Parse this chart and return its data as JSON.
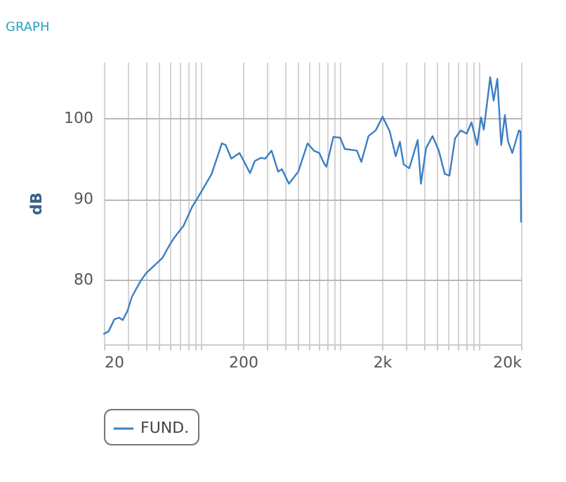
{
  "chart_data": {
    "type": "line",
    "title": "GRAPH",
    "ylabel": "dB",
    "x": [
      20,
      21.6,
      23.8,
      25.7,
      27.3,
      29.5,
      31.8,
      36.6,
      40.2,
      52.7,
      59.3,
      64,
      74.8,
      86,
      98,
      119,
      141,
      150,
      165,
      189,
      225,
      243,
      269,
      290,
      321,
      358,
      381,
      428,
      500,
      583,
      646,
      708,
      766,
      796,
      894,
      1000,
      1080,
      1320,
      1420,
      1600,
      1800,
      2020,
      2270,
      2510,
      2690,
      2860,
      3140,
      3610,
      3810,
      4150,
      4620,
      5120,
      5660,
      6110,
      6700,
      7360,
      8140,
      8800,
      9660,
      10300,
      10800,
      12000,
      12700,
      13500,
      14400,
      15300,
      16100,
      17300,
      19300,
      19800,
      20000
    ],
    "series": [
      {
        "name": "FUND.",
        "color": "#3b7fc4",
        "values": [
          73.3,
          73.6,
          75.1,
          75.3,
          75,
          76.1,
          77.9,
          79.8,
          80.8,
          82.7,
          84.3,
          85.2,
          86.7,
          89,
          90.6,
          93.1,
          96.9,
          96.7,
          95,
          95.7,
          93.2,
          94.7,
          95.1,
          95,
          96,
          93.4,
          93.7,
          91.9,
          93.4,
          96.9,
          96,
          95.7,
          94.4,
          94,
          97.7,
          97.6,
          96.2,
          96,
          94.6,
          97.8,
          98.5,
          100.2,
          98.4,
          95.3,
          97.1,
          94.3,
          93.8,
          97.3,
          91.9,
          96.3,
          97.8,
          96,
          93.1,
          92.9,
          97.5,
          98.5,
          98.1,
          99.5,
          96.7,
          100.1,
          98.6,
          105.1,
          102.2,
          104.9,
          96.7,
          100.4,
          97.2,
          95.7,
          98.5,
          98.4,
          87.2
        ]
      }
    ],
    "xlim": [
      20,
      20000
    ],
    "xticks": [
      20,
      {
        "value": 30,
        "label": null
      },
      {
        "value": 40,
        "label": null
      },
      {
        "value": 50,
        "label": null
      },
      {
        "value": 60,
        "label": null
      },
      {
        "value": 70,
        "label": null
      },
      {
        "value": 80,
        "label": null
      },
      {
        "value": 90,
        "label": null
      },
      {
        "value": 100,
        "label": null
      },
      200,
      {
        "value": 300,
        "label": null
      },
      {
        "value": 400,
        "label": null
      },
      {
        "value": 500,
        "label": null
      },
      {
        "value": 600,
        "label": null
      },
      {
        "value": 700,
        "label": null
      },
      {
        "value": 800,
        "label": null
      },
      {
        "value": 900,
        "label": null
      },
      {
        "value": 1000,
        "label": null
      },
      {
        "value": 2000,
        "label": "2k"
      },
      {
        "value": 3000,
        "label": null
      },
      {
        "value": 4000,
        "label": null
      },
      {
        "value": 5000,
        "label": null
      },
      {
        "value": 6000,
        "label": null
      },
      {
        "value": 7000,
        "label": null
      },
      {
        "value": 8000,
        "label": null
      },
      {
        "value": 9000,
        "label": null
      },
      {
        "value": 10000,
        "label": null
      },
      {
        "value": 20000,
        "label": "20k"
      }
    ],
    "ylim": [
      72,
      107
    ],
    "yticks": [
      80,
      90,
      100
    ],
    "log": "x",
    "grid": true,
    "legend": "bottom",
    "marker": "none",
    "line_style": "solid"
  }
}
